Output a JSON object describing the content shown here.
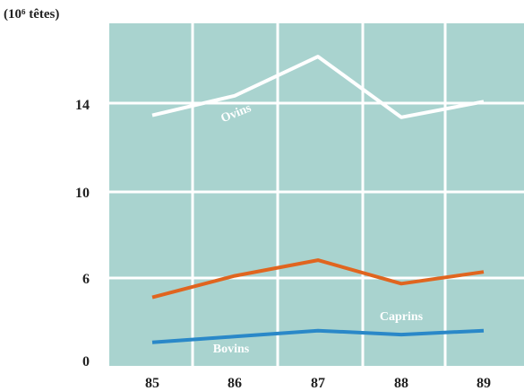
{
  "chart_data": {
    "type": "line",
    "unit_label": "(10⁶ têtes)",
    "categories": [
      "85",
      "86",
      "87",
      "88",
      "89"
    ],
    "y_ticks": [
      0,
      6,
      10,
      14
    ],
    "ylim": [
      0,
      17.5
    ],
    "grid": true,
    "background": "#a9d3cf",
    "grid_color": "#ffffff",
    "series": [
      {
        "name": "Ovins",
        "color": "#ffffff",
        "values": [
          12.8,
          13.8,
          15.8,
          12.7,
          13.5
        ]
      },
      {
        "name": "Caprins",
        "color": "#e0651f",
        "values": [
          3.5,
          4.6,
          5.4,
          4.2,
          4.8
        ]
      },
      {
        "name": "Bovins",
        "color": "#2a88c8",
        "values": [
          1.2,
          1.5,
          1.8,
          1.6,
          1.8
        ]
      }
    ]
  }
}
